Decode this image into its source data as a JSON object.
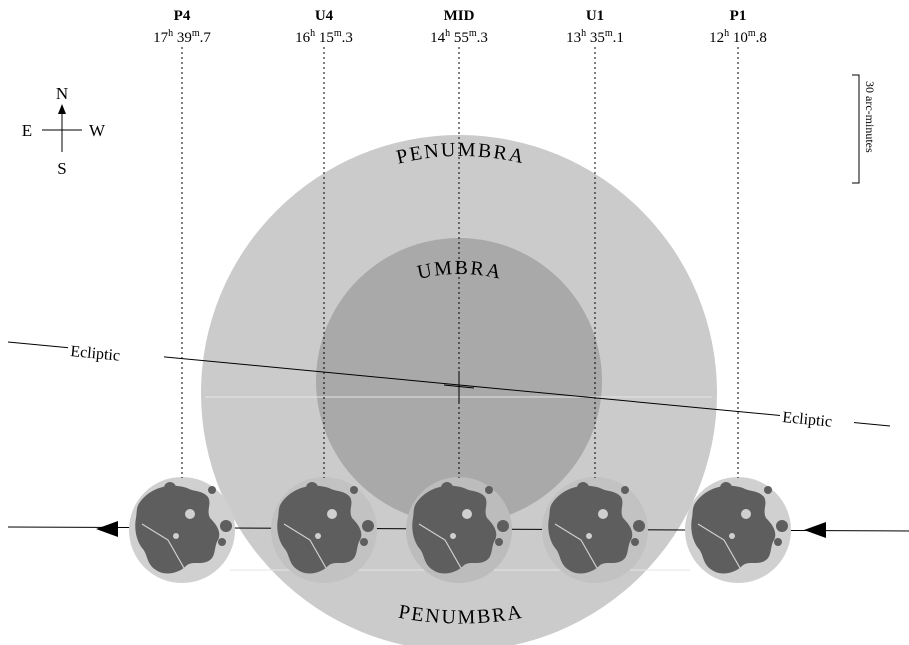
{
  "diagram": {
    "contacts": [
      {
        "id": "p4",
        "label": "P4",
        "hours": "17",
        "minutes": "39",
        "decimal": "7"
      },
      {
        "id": "u4",
        "label": "U4",
        "hours": "16",
        "minutes": "15",
        "decimal": "3"
      },
      {
        "id": "mid",
        "label": "MID",
        "hours": "14",
        "minutes": "55",
        "decimal": "3"
      },
      {
        "id": "u1",
        "label": "U1",
        "hours": "13",
        "minutes": "35",
        "decimal": "1"
      },
      {
        "id": "p1",
        "label": "P1",
        "hours": "12",
        "minutes": "10",
        "decimal": "8"
      }
    ],
    "unit_hours": "h",
    "unit_minutes": "m",
    "compass": {
      "north": "N",
      "south": "S",
      "east": "E",
      "west": "W"
    },
    "shadow_labels": {
      "penumbra_top": "PENUMBRA",
      "penumbra_bottom": "PENUMBRA",
      "umbra": "UMBRA",
      "umbra_partial": "U"
    },
    "ecliptic_left": "Ecliptic",
    "ecliptic_right": "Ecliptic",
    "scale_label": "30 arc-minutes",
    "colors": {
      "penumbra": "#cbcbcb",
      "umbra": "#a9a9a9",
      "moon_light": "#d0d0d0",
      "moon_dark": "#5e5e5e",
      "line": "#000000"
    }
  }
}
